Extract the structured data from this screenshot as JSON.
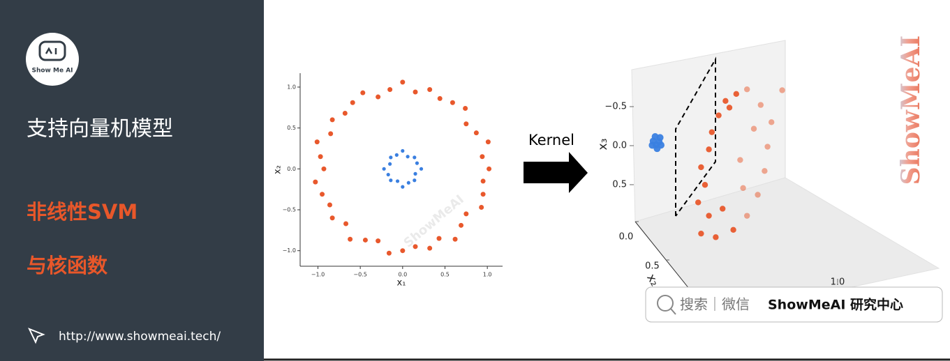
{
  "sidebar": {
    "logo_text": "Show Me AI",
    "title": "支持向量机模型",
    "subtitle_lines": [
      "非线性SVM",
      "与核函数"
    ],
    "url": "http://www.showmeai.tech/"
  },
  "arrow_label": "Kernel",
  "watermark": "ShowMeAI",
  "search_box": {
    "left": "搜索｜微信",
    "right": "ShowMeAI 研究中心"
  },
  "chart_data": [
    {
      "type": "scatter",
      "xlabel": "x₁",
      "ylabel": "x₂",
      "xlim": [
        -1.21,
        1.18
      ],
      "ylim": [
        -1.19,
        1.17
      ],
      "xticks": [
        {
          "value": -1,
          "label": "−1.0"
        },
        {
          "value": -0.5,
          "label": "−0.5"
        },
        {
          "value": 0,
          "label": "0.0"
        },
        0.5,
        {
          "value": 1,
          "label": "1.0"
        }
      ],
      "yticks": [
        {
          "value": -1,
          "label": "−1.0"
        },
        {
          "value": -0.5,
          "label": "−0.5"
        },
        {
          "value": 0,
          "label": "0.0"
        },
        0.5,
        {
          "value": 1,
          "label": "1.0"
        }
      ],
      "series": [
        {
          "color": "#e8582c",
          "x": [
            1.02,
            0.94,
            1.01,
            0.87,
            0.75,
            0.74,
            0.59,
            0.44,
            0.32,
            0.15,
            0,
            -0.15,
            -0.29,
            -0.47,
            -0.59,
            -0.68,
            -0.83,
            -0.85,
            -1.01,
            -0.97,
            -0.93,
            -1.03,
            -0.95,
            -0.86,
            -0.83,
            -0.67,
            -0.62,
            -0.44,
            -0.29,
            -0.16,
            0,
            0.15,
            0.32,
            0.43,
            0.62,
            0.69,
            0.75,
            0.93,
            0.95,
            0.95
          ],
          "y": [
            0,
            0.15,
            0.33,
            0.44,
            0.55,
            0.74,
            0.81,
            0.86,
            0.97,
            0.94,
            1.06,
            0.97,
            0.88,
            0.93,
            0.81,
            0.68,
            0.6,
            0.43,
            0.33,
            0.15,
            0,
            -0.16,
            -0.31,
            -0.44,
            -0.6,
            -0.67,
            -0.86,
            -0.87,
            -0.88,
            -1.03,
            -1.0,
            -0.95,
            -0.97,
            -0.85,
            -0.86,
            -0.69,
            -0.55,
            -0.47,
            -0.31,
            -0.15
          ]
        },
        {
          "color": "#3a7fe0",
          "x": [
            0.22,
            0.17,
            0.14,
            0.06,
            0,
            -0.07,
            -0.14,
            -0.15,
            -0.22,
            -0.17,
            -0.14,
            -0.06,
            0,
            0.07,
            0.14,
            0.15
          ],
          "y": [
            0,
            0.07,
            0.14,
            0.15,
            0.22,
            0.17,
            0.14,
            0.06,
            0,
            -0.07,
            -0.14,
            -0.15,
            -0.22,
            -0.17,
            -0.14,
            -0.06
          ]
        }
      ]
    },
    {
      "type": "scatter3d",
      "ylabel": "x₂",
      "zlabel": "x₃",
      "xticks": [
        0.5,
        {
          "value": 1,
          "label": "1.0"
        }
      ],
      "yticks": [
        {
          "value": 0,
          "label": "0.0"
        },
        0.5,
        {
          "value": 1,
          "label": "1.0"
        }
      ],
      "zticks": [
        {
          "value": -0.5,
          "label": "−0.5"
        },
        {
          "value": 0,
          "label": "0.0"
        },
        0.5
      ],
      "series": [
        {
          "color": "#e8582c",
          "x": [
            0.71,
            0.79,
            0.68,
            0.75,
            0.71,
            0.79,
            0.82,
            0.89,
            0.96,
            1.07,
            1.18,
            0.93,
            0.86,
            1.0,
            1.32,
            1.43,
            1.39,
            1.36,
            1.29,
            1.18,
            1.04,
            1.54,
            1.25,
            1.11,
            1.14
          ],
          "y": [
            0,
            0,
            0,
            0,
            0,
            0,
            0,
            0,
            0,
            0,
            0,
            0,
            0,
            0,
            0,
            0,
            0,
            0,
            0,
            0,
            0,
            0,
            0,
            0,
            0
          ],
          "z": [
            1.38,
            1.18,
            0.97,
            0.77,
            0.53,
            0.33,
            0.12,
            -0.07,
            -0.23,
            -0.28,
            -0.3,
            1.14,
            1.48,
            -0.13,
            -0.05,
            0.21,
            0.51,
            0.81,
            1.09,
            1.32,
            1.45,
            -0.16,
            0.23,
            0.58,
            0.95
          ]
        },
        {
          "color": "#3a7fe0",
          "x": [
            0.22,
            0.25,
            0.28,
            0.24,
            0.3,
            0.26,
            0.21,
            0.29
          ],
          "y": [
            0,
            0,
            0,
            0,
            0,
            0,
            0,
            0
          ],
          "z": [
            0.02,
            0.08,
            0.05,
            -0.03,
            0.1,
            0.13,
            0.07,
            0
          ]
        }
      ]
    }
  ]
}
